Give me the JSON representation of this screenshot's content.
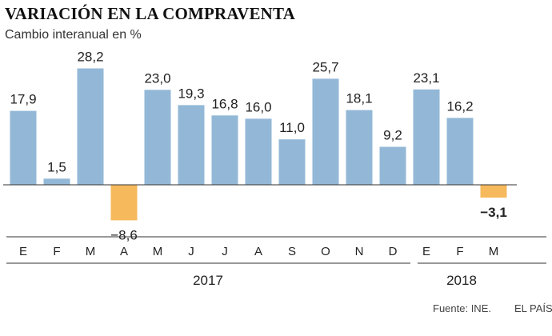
{
  "chart_data": {
    "type": "bar",
    "title": "VARIACIÓN EN LA COMPRAVENTA",
    "subtitle": "Cambio interanual en %",
    "categories": [
      "E",
      "F",
      "M",
      "A",
      "M",
      "J",
      "J",
      "A",
      "S",
      "O",
      "N",
      "D",
      "E",
      "F",
      "M"
    ],
    "values": [
      17.9,
      1.5,
      28.2,
      -8.6,
      23.0,
      19.3,
      16.8,
      16.0,
      11.0,
      25.7,
      18.1,
      9.2,
      23.1,
      16.2,
      -3.1
    ],
    "value_labels": [
      "17,9",
      "1,5",
      "28,2",
      "−8,6",
      "23,0",
      "19,3",
      "16,8",
      "16,0",
      "11,0",
      "25,7",
      "18,1",
      "9,2",
      "23,1",
      "16,2",
      "−3,1"
    ],
    "highlight_last_label": true,
    "groups": [
      {
        "label": "2017",
        "start": 0,
        "end": 11
      },
      {
        "label": "2018",
        "start": 12,
        "end": 14
      }
    ],
    "ylim": [
      -12.5,
      30
    ],
    "grid": false,
    "colors": {
      "positive": "#93b8d7",
      "negative": "#f6b95c",
      "axis": "#333333"
    }
  },
  "footer": {
    "source": "Fuente: INE.",
    "brand": "EL PAÍS"
  }
}
